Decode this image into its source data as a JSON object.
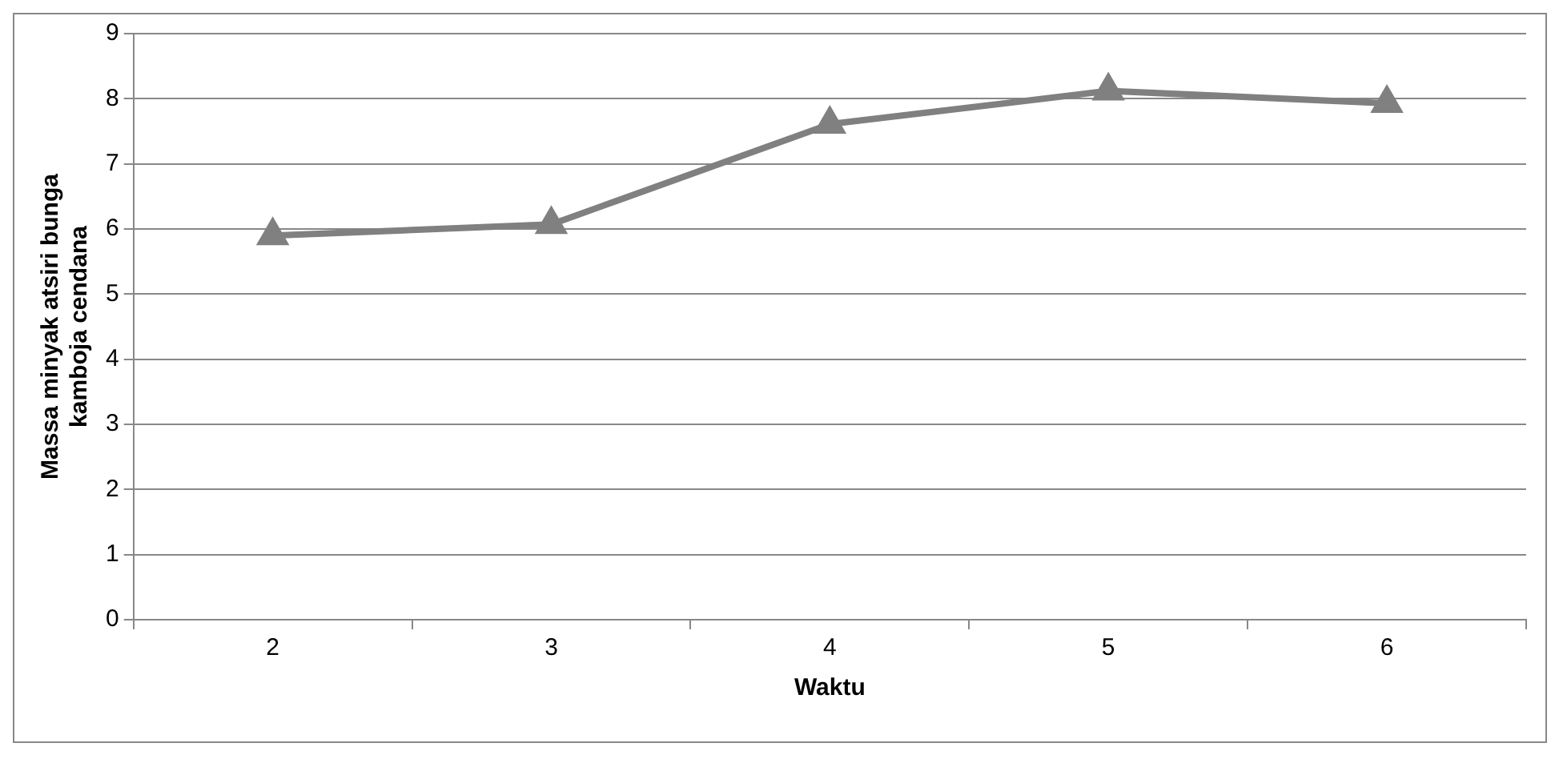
{
  "chart_data": {
    "type": "line",
    "xlabel": "Waktu",
    "ylabel": "Massa minyak atsiri bunga kamboja cendana",
    "categories": [
      "2",
      "3",
      "4",
      "5",
      "6"
    ],
    "series": [
      {
        "color": "#808080",
        "values": [
          5.9,
          6.07,
          7.61,
          8.12,
          7.93
        ]
      }
    ],
    "ylim": [
      0,
      9
    ],
    "yticks": [
      0,
      1,
      2,
      3,
      4,
      5,
      6,
      7,
      8,
      9
    ],
    "grid": "y",
    "legend": false,
    "marker": "triangle",
    "line_style": "solid"
  }
}
